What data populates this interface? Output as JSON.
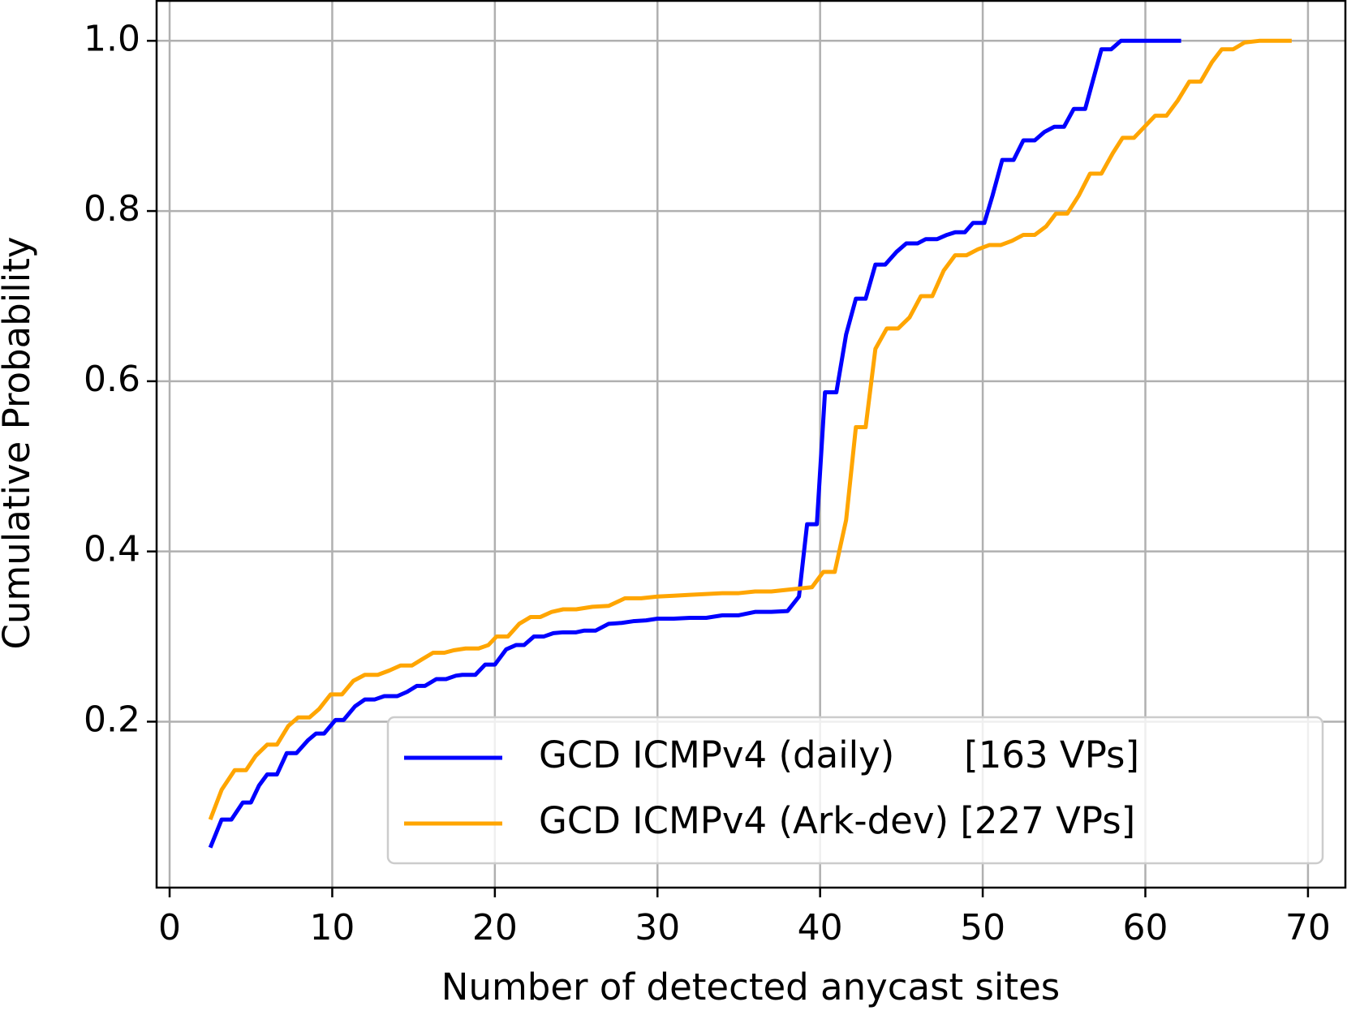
{
  "chart_data": {
    "type": "line",
    "xlabel": "Number of detected anycast sites",
    "ylabel": "Cumulative Probability",
    "xlim": [
      -0.8,
      72.3
    ],
    "ylim": [
      0.005,
      1.047
    ],
    "xticks": [
      0,
      10,
      20,
      30,
      40,
      50,
      60,
      70
    ],
    "yticks": [
      0.2,
      0.4,
      0.6,
      0.8,
      {
        "value": 1,
        "label": "1.0"
      }
    ],
    "grid": true,
    "legend": "lower right",
    "series": [
      {
        "name": "GCD ICMPv4 (daily)      [163 VPs]",
        "color": "#0000ff",
        "x": [
          2.5,
          3.2,
          3.8,
          4.5,
          5,
          5.5,
          6,
          6.6,
          7.2,
          7.8,
          8.5,
          9,
          9.5,
          10.2,
          10.7,
          11.4,
          12,
          12.6,
          13.2,
          14,
          14.6,
          15.2,
          15.7,
          16.4,
          17,
          17.6,
          18,
          18.8,
          19.4,
          20,
          20.7,
          21.3,
          21.8,
          22.4,
          23,
          23.6,
          24.2,
          25,
          25.5,
          26.2,
          27,
          27.8,
          28.5,
          29.3,
          30,
          31,
          32,
          33,
          34,
          35,
          36,
          37,
          38,
          38.7,
          39.2,
          39.8,
          40.3,
          41,
          41.6,
          42.2,
          42.8,
          43.4,
          44,
          44.7,
          45.3,
          46,
          46.5,
          47.2,
          47.8,
          48.3,
          48.9,
          49.4,
          50.1,
          50.6,
          51.2,
          51.9,
          52.5,
          53.2,
          53.8,
          54.4,
          55,
          55.6,
          56.3,
          57.3,
          57.9,
          58.5,
          60,
          62.2
        ],
        "values": [
          0.052,
          0.085,
          0.085,
          0.105,
          0.105,
          0.125,
          0.138,
          0.138,
          0.163,
          0.163,
          0.178,
          0.186,
          0.186,
          0.202,
          0.202,
          0.218,
          0.226,
          0.226,
          0.23,
          0.23,
          0.235,
          0.242,
          0.242,
          0.25,
          0.25,
          0.254,
          0.255,
          0.255,
          0.267,
          0.267,
          0.285,
          0.29,
          0.29,
          0.3,
          0.3,
          0.304,
          0.305,
          0.305,
          0.307,
          0.307,
          0.315,
          0.316,
          0.318,
          0.319,
          0.321,
          0.321,
          0.322,
          0.322,
          0.325,
          0.325,
          0.329,
          0.329,
          0.33,
          0.347,
          0.432,
          0.432,
          0.587,
          0.587,
          0.655,
          0.697,
          0.697,
          0.737,
          0.737,
          0.752,
          0.762,
          0.762,
          0.767,
          0.767,
          0.772,
          0.775,
          0.775,
          0.786,
          0.786,
          0.818,
          0.86,
          0.86,
          0.883,
          0.883,
          0.893,
          0.899,
          0.899,
          0.92,
          0.92,
          0.99,
          0.99,
          1.0,
          1.0,
          1.0
        ]
      },
      {
        "name": "GCD ICMPv4 (Ark-dev) [227 VPs]",
        "color": "#ffa500",
        "x": [
          2.5,
          3.2,
          4,
          4.7,
          5.3,
          6,
          6.6,
          7.3,
          7.9,
          8.6,
          9.2,
          9.9,
          10.6,
          11.3,
          12,
          12.8,
          13.5,
          14.2,
          14.9,
          15.5,
          16.2,
          16.9,
          17.5,
          18.2,
          19,
          19.6,
          20.1,
          20.8,
          21.5,
          22.2,
          22.8,
          23.5,
          24.2,
          25,
          26,
          27,
          28,
          29,
          30,
          31,
          32,
          33,
          34,
          35,
          36,
          37,
          38,
          39.5,
          40.2,
          40.9,
          41.6,
          42.2,
          42.8,
          43.4,
          44.1,
          44.8,
          45.5,
          46.2,
          46.9,
          47.6,
          48.3,
          49,
          49.7,
          50.4,
          51.1,
          51.8,
          52.5,
          53.2,
          53.9,
          54.5,
          55.2,
          55.9,
          56.6,
          57.3,
          58,
          58.6,
          59.3,
          60,
          60.6,
          61.3,
          62,
          62.7,
          63.4,
          64.1,
          64.7,
          65.4,
          66.1,
          67,
          69
        ],
        "values": [
          0.085,
          0.12,
          0.143,
          0.143,
          0.16,
          0.173,
          0.173,
          0.195,
          0.205,
          0.205,
          0.215,
          0.232,
          0.232,
          0.248,
          0.255,
          0.255,
          0.26,
          0.266,
          0.266,
          0.273,
          0.281,
          0.281,
          0.284,
          0.286,
          0.286,
          0.29,
          0.3,
          0.3,
          0.315,
          0.323,
          0.323,
          0.329,
          0.332,
          0.332,
          0.335,
          0.336,
          0.345,
          0.345,
          0.347,
          0.348,
          0.349,
          0.35,
          0.351,
          0.351,
          0.353,
          0.353,
          0.355,
          0.358,
          0.376,
          0.376,
          0.437,
          0.546,
          0.546,
          0.638,
          0.662,
          0.662,
          0.675,
          0.7,
          0.7,
          0.73,
          0.748,
          0.748,
          0.755,
          0.76,
          0.76,
          0.765,
          0.772,
          0.772,
          0.782,
          0.797,
          0.797,
          0.818,
          0.844,
          0.844,
          0.868,
          0.886,
          0.886,
          0.9,
          0.912,
          0.912,
          0.93,
          0.952,
          0.952,
          0.975,
          0.99,
          0.99,
          0.998,
          1.0,
          1.0
        ]
      }
    ]
  }
}
